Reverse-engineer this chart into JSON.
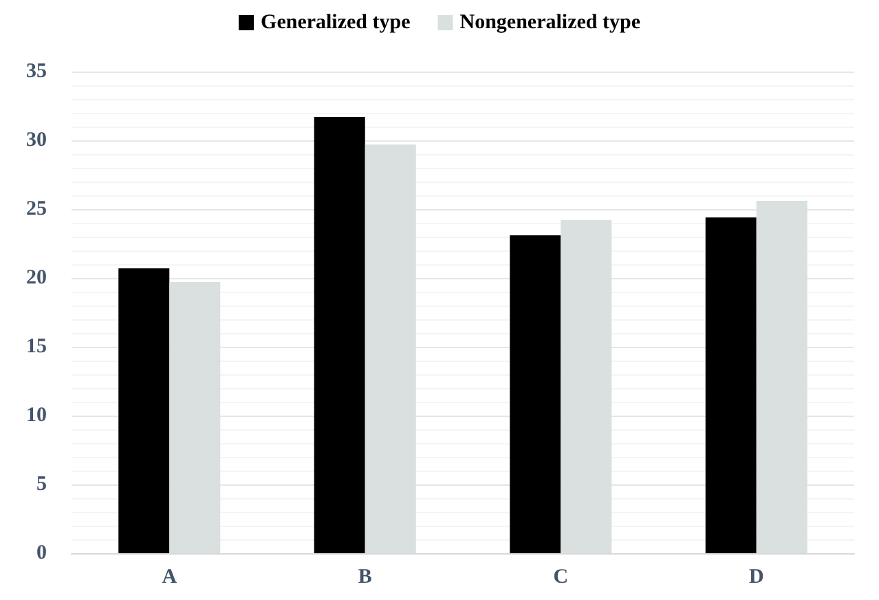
{
  "chart_data": {
    "type": "bar",
    "categories": [
      "A",
      "B",
      "C",
      "D"
    ],
    "series": [
      {
        "name": "Generalized type",
        "color": "#000000",
        "values": [
          20.7,
          31.7,
          23.1,
          24.4
        ]
      },
      {
        "name": "Nongeneralized type",
        "color": "#d9e0df",
        "values": [
          19.7,
          29.7,
          24.2,
          25.6
        ]
      }
    ],
    "ylim": [
      0,
      35
    ],
    "yticks": [
      0,
      5,
      10,
      15,
      20,
      25,
      30,
      35
    ],
    "grid": "y",
    "legend": "top"
  }
}
